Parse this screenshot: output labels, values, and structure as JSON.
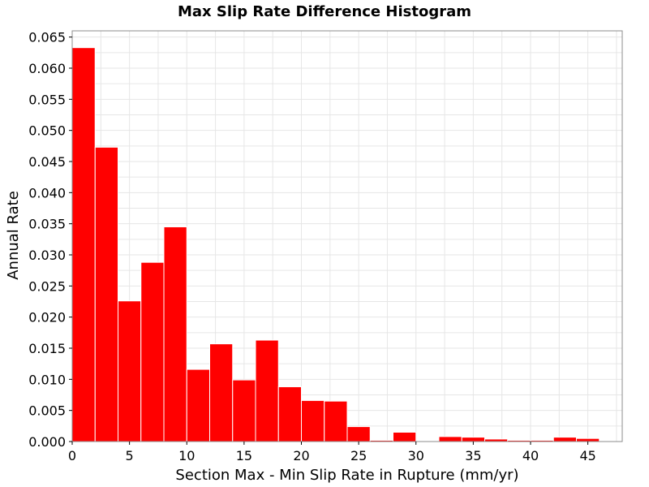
{
  "chart_data": {
    "type": "bar",
    "title": "Max Slip Rate Difference Histogram",
    "xlabel": "Section Max - Min Slip Rate in Rupture (mm/yr)",
    "ylabel": "Annual Rate",
    "xlim": [
      0,
      48
    ],
    "ylim": [
      0,
      0.066
    ],
    "bin_width": 2,
    "x_ticks": [
      0,
      5,
      10,
      15,
      20,
      25,
      30,
      35,
      40,
      45
    ],
    "x_tick_labels": [
      "0",
      "5",
      "10",
      "15",
      "20",
      "25",
      "30",
      "35",
      "40",
      "45"
    ],
    "y_ticks": [
      0,
      0.005,
      0.01,
      0.015,
      0.02,
      0.025,
      0.03,
      0.035,
      0.04,
      0.045,
      0.05,
      0.055,
      0.06,
      0.065
    ],
    "y_tick_labels": [
      "0.000",
      "0.005",
      "0.010",
      "0.015",
      "0.020",
      "0.025",
      "0.030",
      "0.035",
      "0.040",
      "0.045",
      "0.050",
      "0.055",
      "0.060",
      "0.065"
    ],
    "grid": true,
    "bar_color": "#ff0000",
    "bins": [
      {
        "x": 1,
        "y": 0.0633
      },
      {
        "x": 3,
        "y": 0.0473
      },
      {
        "x": 5,
        "y": 0.0226
      },
      {
        "x": 7,
        "y": 0.0288
      },
      {
        "x": 9,
        "y": 0.0345
      },
      {
        "x": 11,
        "y": 0.0116
      },
      {
        "x": 13,
        "y": 0.0157
      },
      {
        "x": 15,
        "y": 0.0099
      },
      {
        "x": 17,
        "y": 0.0163
      },
      {
        "x": 19,
        "y": 0.0088
      },
      {
        "x": 21,
        "y": 0.0066
      },
      {
        "x": 23,
        "y": 0.0065
      },
      {
        "x": 25,
        "y": 0.0024
      },
      {
        "x": 27,
        "y": 0.0002
      },
      {
        "x": 29,
        "y": 0.0015
      },
      {
        "x": 31,
        "y": 0.0
      },
      {
        "x": 33,
        "y": 0.0008
      },
      {
        "x": 35,
        "y": 0.0007
      },
      {
        "x": 37,
        "y": 0.0004
      },
      {
        "x": 39,
        "y": 0.0002
      },
      {
        "x": 41,
        "y": 0.0002
      },
      {
        "x": 43,
        "y": 0.0007
      },
      {
        "x": 45,
        "y": 0.0005
      }
    ]
  }
}
